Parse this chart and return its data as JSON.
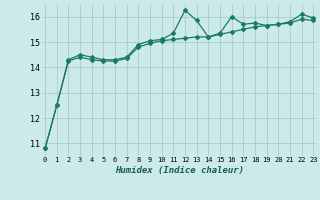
{
  "xlabel": "Humidex (Indice chaleur)",
  "background_color": "#cceae7",
  "grid_color": "#aacccc",
  "line_color": "#1a7a6a",
  "x_values": [
    0,
    1,
    2,
    3,
    4,
    5,
    6,
    7,
    8,
    9,
    10,
    11,
    12,
    13,
    14,
    15,
    16,
    17,
    18,
    19,
    20,
    21,
    22,
    23
  ],
  "line1_y": [
    10.8,
    12.5,
    14.3,
    14.5,
    14.4,
    14.3,
    14.3,
    14.4,
    14.9,
    15.05,
    15.1,
    15.35,
    16.25,
    15.85,
    15.2,
    15.35,
    16.0,
    15.7,
    15.75,
    15.65,
    15.7,
    15.8,
    16.1,
    15.95
  ],
  "line2_y": [
    10.8,
    12.5,
    14.25,
    14.4,
    14.3,
    14.25,
    14.25,
    14.35,
    14.8,
    14.95,
    15.05,
    15.1,
    15.15,
    15.2,
    15.2,
    15.3,
    15.4,
    15.5,
    15.6,
    15.65,
    15.7,
    15.75,
    15.9,
    15.85
  ],
  "ylim": [
    10.5,
    16.5
  ],
  "yticks": [
    11,
    12,
    13,
    14,
    15,
    16
  ],
  "xlim": [
    -0.3,
    23.3
  ]
}
